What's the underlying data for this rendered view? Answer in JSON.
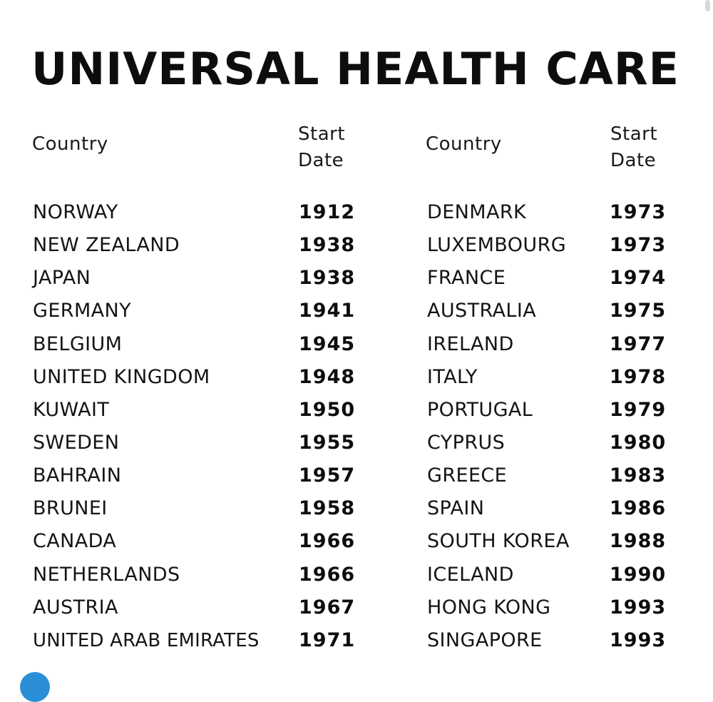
{
  "title": "UNIVERSAL HEALTH CARE",
  "headers": {
    "country": "Country",
    "start_line1": "Start",
    "start_line2": "Date"
  },
  "left_column": [
    {
      "country": "NORWAY",
      "year": "1912"
    },
    {
      "country": "NEW ZEALAND",
      "year": "1938"
    },
    {
      "country": "JAPAN",
      "year": "1938"
    },
    {
      "country": "GERMANY",
      "year": "1941"
    },
    {
      "country": "BELGIUM",
      "year": "1945"
    },
    {
      "country": "UNITED KINGDOM",
      "year": "1948"
    },
    {
      "country": "KUWAIT",
      "year": "1950"
    },
    {
      "country": "SWEDEN",
      "year": "1955"
    },
    {
      "country": "BAHRAIN",
      "year": "1957"
    },
    {
      "country": "BRUNEI",
      "year": "1958"
    },
    {
      "country": "CANADA",
      "year": "1966"
    },
    {
      "country": "NETHERLANDS",
      "year": "1966"
    },
    {
      "country": "AUSTRIA",
      "year": "1967"
    },
    {
      "country": "UNITED ARAB EMIRATES",
      "year": "1971"
    }
  ],
  "right_column": [
    {
      "country": "DENMARK",
      "year": "1973"
    },
    {
      "country": "LUXEMBOURG",
      "year": "1973"
    },
    {
      "country": "FRANCE",
      "year": "1974"
    },
    {
      "country": "AUSTRALIA",
      "year": "1975"
    },
    {
      "country": "IRELAND",
      "year": "1977"
    },
    {
      "country": "ITALY",
      "year": "1978"
    },
    {
      "country": "PORTUGAL",
      "year": "1979"
    },
    {
      "country": "CYPRUS",
      "year": "1980"
    },
    {
      "country": "GREECE",
      "year": "1983"
    },
    {
      "country": "SPAIN",
      "year": "1986"
    },
    {
      "country": "SOUTH KOREA",
      "year": "1988"
    },
    {
      "country": "ICELAND",
      "year": "1990"
    },
    {
      "country": "HONG KONG",
      "year": "1993"
    },
    {
      "country": "SINGAPORE",
      "year": "1993"
    }
  ],
  "colors": {
    "text": "#121212",
    "background": "#ffffff",
    "corner_badge": "#2a8fd6"
  }
}
